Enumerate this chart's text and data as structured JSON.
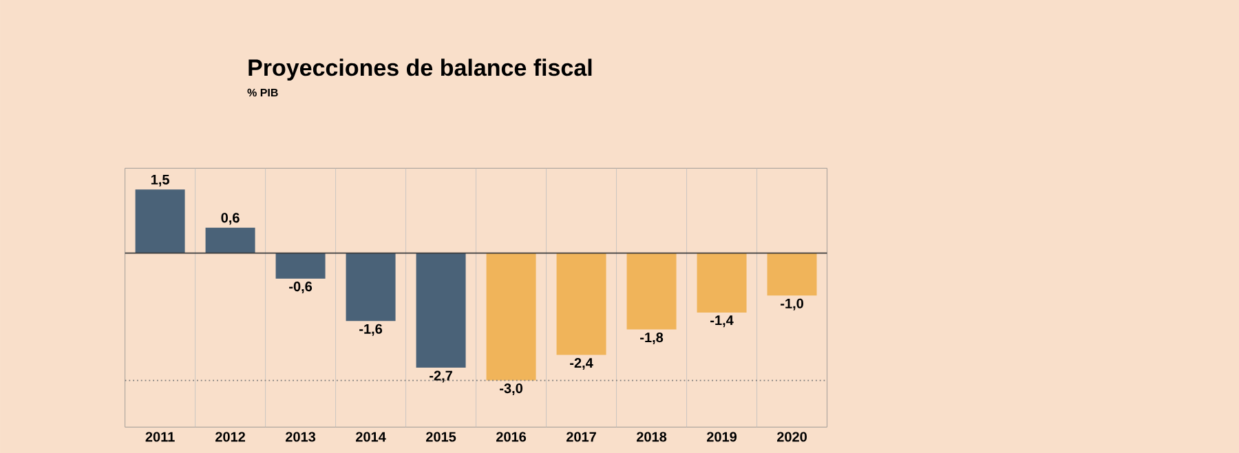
{
  "chart_data": {
    "type": "bar",
    "title": "Proyecciones de balance fiscal",
    "subtitle": "% PIB",
    "categories": [
      "2011",
      "2012",
      "2013",
      "2014",
      "2015",
      "2016",
      "2017",
      "2018",
      "2019",
      "2020"
    ],
    "values": [
      1.5,
      0.6,
      -0.6,
      -1.6,
      -2.7,
      -3.0,
      -2.4,
      -1.8,
      -1.4,
      -1.0
    ],
    "value_labels": [
      "1,5",
      "0,6",
      "-0,6",
      "-1,6",
      "-2,7",
      "-3,0",
      "-2,4",
      "-1,8",
      "-1,4",
      "-1,0"
    ],
    "colors": [
      "#4a6278",
      "#4a6278",
      "#4a6278",
      "#4a6278",
      "#4a6278",
      "#f0b45a",
      "#f0b45a",
      "#f0b45a",
      "#f0b45a",
      "#f0b45a"
    ],
    "ylim": [
      -4.1,
      2.0
    ],
    "grid": "x",
    "ref_lines": [
      {
        "axis": "y",
        "value": 0,
        "line_style": "solid",
        "color": "#3a3a3a"
      },
      {
        "axis": "y",
        "value": -3,
        "line_style": "dotted",
        "color": "#7a7a7a"
      }
    ]
  }
}
